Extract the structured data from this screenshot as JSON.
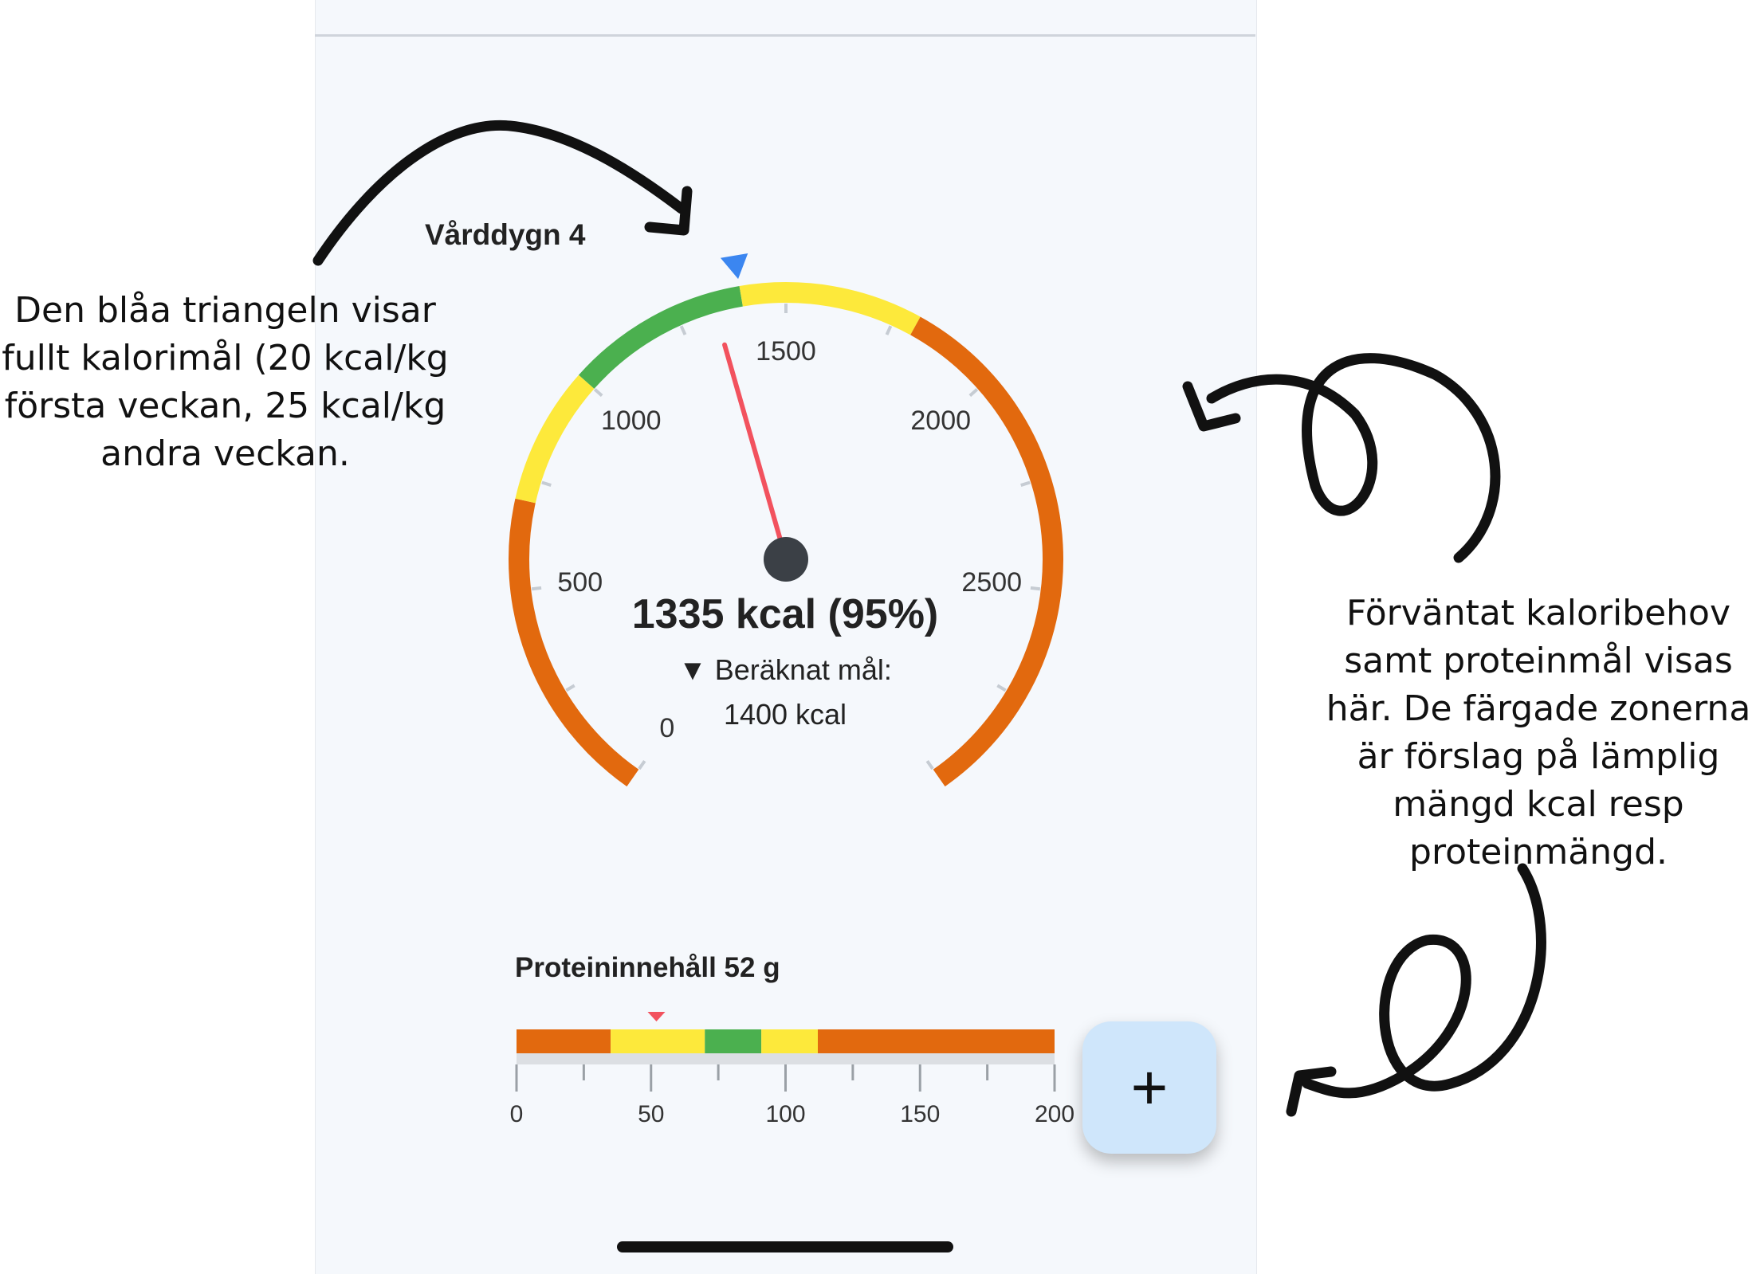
{
  "annotations": {
    "left": [
      "Den blåa triangeln visar",
      "fullt kalorimål (20 kcal/kg",
      "första veckan, 25 kcal/kg",
      "andra veckan."
    ],
    "right": [
      "Förväntat kaloribehov",
      "samt proteinmål visas",
      "här. De färgade zonerna",
      "är förslag på lämplig",
      "mängd kcal resp",
      "proteinmängd."
    ]
  },
  "gauge": {
    "day_label": "Vårddygn 4",
    "value_text": "1335 kcal (95%)",
    "goal_line1": "▼ Beräknat mål:",
    "goal_line2": "1400 kcal",
    "value": 1335,
    "target": 1400,
    "max": 3000,
    "tick_labels": [
      "0",
      "500",
      "1000",
      "1500",
      "2000",
      "2500"
    ],
    "zones": [
      {
        "from": 0,
        "to": 700,
        "color": "#e2690e"
      },
      {
        "from": 700,
        "to": 1000,
        "color": "#fde93b"
      },
      {
        "from": 1000,
        "to": 1400,
        "color": "#4bb04f"
      },
      {
        "from": 1400,
        "to": 1800,
        "color": "#fde93b"
      },
      {
        "from": 1800,
        "to": 3000,
        "color": "#e2690e"
      }
    ],
    "needle_color": "#f2525e",
    "hub_color": "#3b4046",
    "target_marker_color": "#3b86f0"
  },
  "protein": {
    "label": "Proteininnehåll 52 g",
    "value": 52,
    "max": 200,
    "tick_labels": [
      "0",
      "50",
      "100",
      "150",
      "200"
    ],
    "zones": [
      {
        "from": 0,
        "to": 35,
        "color": "#e2690e"
      },
      {
        "from": 35,
        "to": 70,
        "color": "#fde93b"
      },
      {
        "from": 70,
        "to": 91,
        "color": "#4bb04f"
      },
      {
        "from": 91,
        "to": 112,
        "color": "#fde93b"
      },
      {
        "from": 112,
        "to": 200,
        "color": "#e2690e"
      }
    ],
    "marker_color": "#f2525e"
  },
  "fab": {
    "label": "+",
    "icon": "plus-icon"
  }
}
